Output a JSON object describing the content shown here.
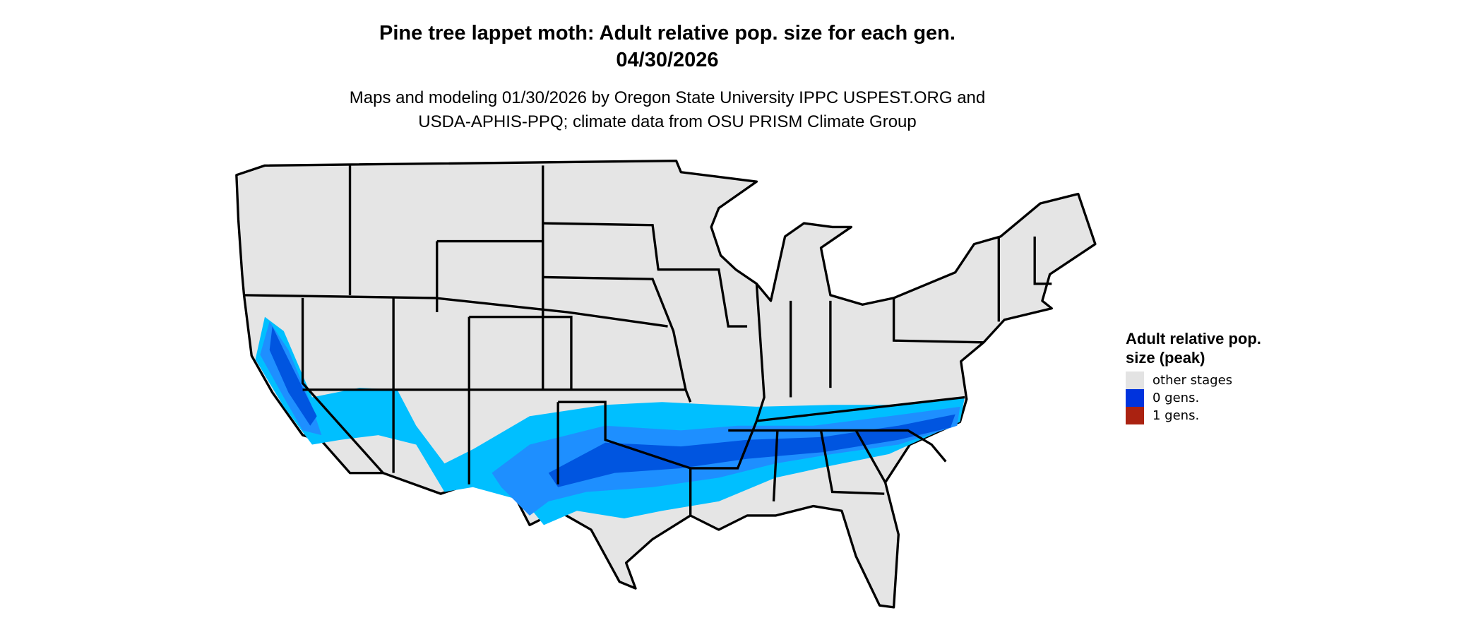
{
  "title": "Pine tree lappet moth: Adult relative pop. size for each gen.",
  "date": "04/30/2026",
  "subtitle_line1": "Maps and modeling 01/30/2026 by Oregon State University IPPC USPEST.ORG and",
  "subtitle_line2": "USDA-APHIS-PPQ; climate data from OSU PRISM Climate Group",
  "legend": {
    "title": "Adult relative pop. size (peak)",
    "items": [
      {
        "label": "other stages",
        "color": "#e3e3e3"
      },
      {
        "label": "0 gens.",
        "color": "#0033dd"
      },
      {
        "label": "1 gens.",
        "color": "#aa2211"
      }
    ]
  },
  "map_colors": {
    "land": "#e5e5e5",
    "border": "#000000",
    "band_light": "#00bfff",
    "band_mid": "#1e8fff",
    "band_dark": "#0055e0"
  }
}
